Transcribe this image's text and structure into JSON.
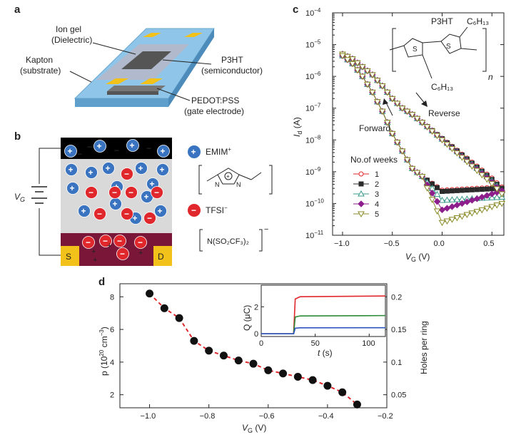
{
  "panels": {
    "a": "a",
    "b": "b",
    "c": "c",
    "d": "d"
  },
  "panel_a": {
    "ion_gel": "Ion gel",
    "dielectric": "(Dielectric)",
    "kapton": "Kapton",
    "substrate": "(substrate)",
    "p3ht": "P3HT",
    "semiconductor": "(semiconductor)",
    "pedot": "PEDOT:PSS",
    "gate_electrode": "(gate electrode)"
  },
  "panel_b": {
    "vg": "V",
    "vg_sub": "G",
    "source": "S",
    "drain": "D",
    "cation_label": "EMIM",
    "cation_sup": "+",
    "anion_label": "TFSI",
    "anion_sup": "−",
    "anion_formula": "N(SO₂CF₃)₂",
    "anion_formula_charge": "−",
    "plus": "+",
    "minus": "−"
  },
  "colors": {
    "cation": "#3a74c0",
    "anion": "#e0272c",
    "substrate_blue": "#8ec5e8",
    "electrode_yellow": "#f2c21a",
    "semiconductor_maroon": "#7a1638",
    "dielectric_grey": "#d9d9d9",
    "c_series": [
      "#e0272c",
      "#2b2b2b",
      "#3a9a8a",
      "#8d1e8c",
      "#8a8a2a"
    ],
    "d_fit": "#e0272c",
    "d_points": "#111111",
    "inset_series": [
      "#e0272c",
      "#2e8b3a",
      "#2f55c0"
    ]
  },
  "chart_data": [
    {
      "panel": "c",
      "type": "line",
      "title": "",
      "xlabel": "V",
      "xlabel_sub": "G",
      "xlabel_unit": " (V)",
      "ylabel": "I",
      "ylabel_sub": "d",
      "ylabel_unit": " (A)",
      "xlim": [
        -1.1,
        0.62
      ],
      "ylim_log10": [
        -11,
        -4
      ],
      "yscale": "log",
      "xticks": [
        "−1.0",
        "−0.5",
        "0.0",
        "0.5"
      ],
      "xtick_values": [
        -1.0,
        -0.5,
        0.0,
        0.5
      ],
      "ytick_exponents": [
        -11,
        -10,
        -9,
        -8,
        -7,
        -6,
        -5,
        -4
      ],
      "ytick_base": "10",
      "legend_title": "No.of weeks",
      "legend_position": "left",
      "annotations": {
        "forward": "Forward",
        "reverse": "Reverse",
        "polymer": "P3HT",
        "sulfur": "S",
        "hexyl_top": "C₆H₁₃",
        "hexyl_bottom": "C₆H₁₃",
        "repeat": "n"
      },
      "series": [
        {
          "name": "1",
          "marker": "circle",
          "off_current_log10": -9.58
        },
        {
          "name": "2",
          "marker": "square",
          "off_current_log10": -9.62
        },
        {
          "name": "3",
          "marker": "triangle",
          "off_current_log10": -9.9
        },
        {
          "name": "4",
          "marker": "diamond",
          "off_current_log10": -10.2
        },
        {
          "name": "5",
          "marker": "triangle-down",
          "off_current_log10": -10.6
        }
      ],
      "reverse_sweep": {
        "x": [
          -1.0,
          -0.9,
          -0.8,
          -0.7,
          -0.6,
          -0.5,
          -0.4,
          -0.3,
          -0.2,
          -0.1,
          0.0,
          0.1,
          0.2,
          0.3,
          0.4,
          0.5,
          0.6
        ],
        "log10_id": [
          -5.3,
          -5.45,
          -5.7,
          -5.95,
          -6.3,
          -6.7,
          -7.0,
          -7.2,
          -7.45,
          -7.7,
          -7.95,
          -8.2,
          -8.45,
          -8.7,
          -8.95,
          -9.2,
          -9.5
        ]
      },
      "forward_sweep": {
        "x": [
          -1.0,
          -0.9,
          -0.8,
          -0.7,
          -0.6,
          -0.5,
          -0.4,
          -0.3,
          -0.2,
          -0.1,
          0.0
        ],
        "log10_id": [
          -5.35,
          -5.6,
          -6.0,
          -6.5,
          -7.1,
          -7.8,
          -8.35,
          -8.9,
          -9.15,
          -9.35,
          -9.55
        ]
      }
    },
    {
      "panel": "d",
      "type": "scatter",
      "title": "",
      "xlabel": "V",
      "xlabel_sub": "G",
      "xlabel_unit": " (V)",
      "ylabel": "p (10",
      "ylabel_sup": "20",
      "ylabel_tail": " cm",
      "ylabel_tail_sup": "−3",
      "ylabel_close": ")",
      "ylabel_right": "Holes per ring",
      "xlim": [
        -1.1,
        -0.2
      ],
      "ylim": [
        1.2,
        8.8
      ],
      "ylim_right": [
        0.03,
        0.22
      ],
      "xticks": [
        "−1.0",
        "−0.8",
        "−0.6",
        "−0.4",
        "−0.2"
      ],
      "xtick_values": [
        -1.0,
        -0.8,
        -0.6,
        -0.4,
        -0.2
      ],
      "yticks": [
        "2",
        "4",
        "6",
        "8"
      ],
      "ytick_values": [
        2,
        4,
        6,
        8
      ],
      "yticks_right": [
        "0.05",
        "0.1",
        "0.15",
        "0.2"
      ],
      "ytick_right_values": [
        0.05,
        0.1,
        0.15,
        0.2
      ],
      "x": [
        -1.0,
        -0.95,
        -0.9,
        -0.85,
        -0.8,
        -0.75,
        -0.7,
        -0.65,
        -0.6,
        -0.55,
        -0.5,
        -0.45,
        -0.4,
        -0.35,
        -0.3
      ],
      "y": [
        8.2,
        7.3,
        6.7,
        5.3,
        4.7,
        4.4,
        4.1,
        3.9,
        3.5,
        3.3,
        3.1,
        2.9,
        2.55,
        2.15,
        1.4
      ],
      "fit": "dashed"
    },
    {
      "panel": "d-inset",
      "type": "line",
      "xlabel": "t",
      "xlabel_unit": " (s)",
      "ylabel": "Q (μC)",
      "xlim": [
        0,
        115
      ],
      "ylim": [
        -0.2,
        3.6
      ],
      "xticks": [
        "0",
        "50",
        "100"
      ],
      "xtick_values": [
        0,
        50,
        100
      ],
      "yticks": [
        "0",
        "2"
      ],
      "ytick_values": [
        0,
        2
      ],
      "switch_time": 30,
      "series": [
        {
          "name": "red",
          "plateau": 2.8
        },
        {
          "name": "green",
          "plateau": 1.35
        },
        {
          "name": "blue",
          "plateau": 0.45
        }
      ]
    }
  ]
}
